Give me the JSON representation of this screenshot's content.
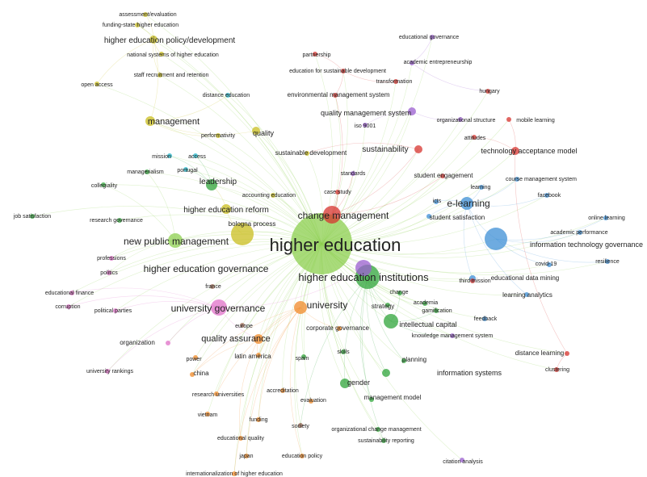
{
  "network": {
    "clusters": {
      "red": "#d7342f",
      "green": "#2fa43a",
      "blue": "#3d8fd6",
      "yellow": "#c9bd1f",
      "purple": "#9b5fd0",
      "cyan": "#22b5c9",
      "orange": "#f08a28",
      "pink": "#e070c8",
      "brown": "#9e6b55",
      "lightgreen": "#8ccf4f"
    },
    "terms": [
      {
        "label": "higher education",
        "cluster": "lightgreen",
        "weight": 10
      },
      {
        "label": "higher education institutions",
        "cluster": "green",
        "weight": 7
      },
      {
        "label": "change management",
        "cluster": "red",
        "weight": 6
      },
      {
        "label": "new public management",
        "cluster": "lightgreen",
        "weight": 6
      },
      {
        "label": "higher education governance",
        "cluster": "purple",
        "weight": 6
      },
      {
        "label": "university governance",
        "cluster": "pink",
        "weight": 6
      },
      {
        "label": "university",
        "cluster": "orange",
        "weight": 6
      },
      {
        "label": "e-learning",
        "cluster": "blue",
        "weight": 6
      },
      {
        "label": "quality assurance",
        "cluster": "orange",
        "weight": 5
      },
      {
        "label": "higher education reform",
        "cluster": "yellow",
        "weight": 4
      },
      {
        "label": "management",
        "cluster": "yellow",
        "weight": 5
      },
      {
        "label": "higher education policy/development",
        "cluster": "yellow",
        "weight": 4
      },
      {
        "label": "leadership",
        "cluster": "green",
        "weight": 4
      },
      {
        "label": "sustainability",
        "cluster": "red",
        "weight": 4
      },
      {
        "label": "quality management system",
        "cluster": "purple",
        "weight": 4
      },
      {
        "label": "technology acceptance model",
        "cluster": "red",
        "weight": 3
      },
      {
        "label": "information technology governance",
        "cluster": "blue",
        "weight": 3
      },
      {
        "label": "intellectual capital",
        "cluster": "green",
        "weight": 3
      },
      {
        "label": "information systems",
        "cluster": "green",
        "weight": 3
      },
      {
        "label": "gender",
        "cluster": "green",
        "weight": 3
      },
      {
        "label": "bologna process",
        "cluster": "yellow",
        "weight": 2
      },
      {
        "label": "quality",
        "cluster": "yellow",
        "weight": 3
      },
      {
        "label": "strategy",
        "cluster": "green",
        "weight": 3
      },
      {
        "label": "educational data mining",
        "cluster": "blue",
        "weight": 2
      },
      {
        "label": "distance learning",
        "cluster": "red",
        "weight": 2
      },
      {
        "label": "latin america",
        "cluster": "orange",
        "weight": 2
      },
      {
        "label": "china",
        "cluster": "orange",
        "weight": 2
      },
      {
        "label": "learning analytics",
        "cluster": "blue",
        "weight": 2
      },
      {
        "label": "management model",
        "cluster": "green",
        "weight": 2
      },
      {
        "label": "student satisfaction",
        "cluster": "blue",
        "weight": 2
      },
      {
        "label": "student engagement",
        "cluster": "red",
        "weight": 2
      },
      {
        "label": "corporate governance",
        "cluster": "orange",
        "weight": 2
      },
      {
        "label": "planning",
        "cluster": "green",
        "weight": 2
      },
      {
        "label": "organization",
        "cluster": "pink",
        "weight": 2
      },
      {
        "label": "research universities",
        "cluster": "orange",
        "weight": 2
      },
      {
        "label": "evaluation",
        "cluster": "orange",
        "weight": 2
      },
      {
        "label": "funding",
        "cluster": "orange",
        "weight": 2
      },
      {
        "label": "sustainable development",
        "cluster": "yellow",
        "weight": 2
      },
      {
        "label": "environmental management system",
        "cluster": "red",
        "weight": 2
      },
      {
        "label": "education for sustainable development",
        "cluster": "red",
        "weight": 2
      },
      {
        "label": "academic entrepreneurship",
        "cluster": "purple",
        "weight": 2
      },
      {
        "label": "educational governance",
        "cluster": "purple",
        "weight": 1
      },
      {
        "label": "assessment/evaluation",
        "cluster": "yellow",
        "weight": 1
      },
      {
        "label": "funding-state higher education",
        "cluster": "yellow",
        "weight": 1
      },
      {
        "label": "national systems of higher education",
        "cluster": "yellow",
        "weight": 1
      },
      {
        "label": "staff recruitment and retention",
        "cluster": "yellow",
        "weight": 1
      },
      {
        "label": "open access",
        "cluster": "yellow",
        "weight": 1
      },
      {
        "label": "partnership",
        "cluster": "red",
        "weight": 1
      },
      {
        "label": "transformation",
        "cluster": "red",
        "weight": 1
      },
      {
        "label": "hungary",
        "cluster": "red",
        "weight": 1
      },
      {
        "label": "distance education",
        "cluster": "cyan",
        "weight": 1
      },
      {
        "label": "iso 9001",
        "cluster": "purple",
        "weight": 1
      },
      {
        "label": "organizational structure",
        "cluster": "purple",
        "weight": 1
      },
      {
        "label": "mobile learning",
        "cluster": "red",
        "weight": 1
      },
      {
        "label": "attitudes",
        "cluster": "red",
        "weight": 1
      },
      {
        "label": "performativity",
        "cluster": "yellow",
        "weight": 1
      },
      {
        "label": "mission",
        "cluster": "cyan",
        "weight": 1
      },
      {
        "label": "access",
        "cluster": "cyan",
        "weight": 1
      },
      {
        "label": "portugal",
        "cluster": "cyan",
        "weight": 1
      },
      {
        "label": "managerialism",
        "cluster": "green",
        "weight": 1
      },
      {
        "label": "collegiality",
        "cluster": "green",
        "weight": 1
      },
      {
        "label": "accounting education",
        "cluster": "yellow",
        "weight": 1
      },
      {
        "label": "standards",
        "cluster": "purple",
        "weight": 1
      },
      {
        "label": "case study",
        "cluster": "red",
        "weight": 1
      },
      {
        "label": "course management system",
        "cluster": "blue",
        "weight": 1
      },
      {
        "label": "learning",
        "cluster": "blue",
        "weight": 1
      },
      {
        "label": "facebook",
        "cluster": "blue",
        "weight": 1
      },
      {
        "label": "icts",
        "cluster": "blue",
        "weight": 1
      },
      {
        "label": "job satisfaction",
        "cluster": "green",
        "weight": 1
      },
      {
        "label": "research governance",
        "cluster": "green",
        "weight": 1
      },
      {
        "label": "online learning",
        "cluster": "blue",
        "weight": 1
      },
      {
        "label": "academic performance",
        "cluster": "blue",
        "weight": 1
      },
      {
        "label": "resilience",
        "cluster": "blue",
        "weight": 1
      },
      {
        "label": "covid-19",
        "cluster": "blue",
        "weight": 1
      },
      {
        "label": "professions",
        "cluster": "pink",
        "weight": 1
      },
      {
        "label": "politics",
        "cluster": "pink",
        "weight": 1
      },
      {
        "label": "france",
        "cluster": "brown",
        "weight": 1
      },
      {
        "label": "third mission",
        "cluster": "red",
        "weight": 1
      },
      {
        "label": "change",
        "cluster": "green",
        "weight": 1
      },
      {
        "label": "academia",
        "cluster": "green",
        "weight": 1
      },
      {
        "label": "gamification",
        "cluster": "green",
        "weight": 1
      },
      {
        "label": "feedback",
        "cluster": "blue",
        "weight": 1
      },
      {
        "label": "knowledge management system",
        "cluster": "purple",
        "weight": 1
      },
      {
        "label": "educational finance",
        "cluster": "pink",
        "weight": 1
      },
      {
        "label": "corruption",
        "cluster": "pink",
        "weight": 1
      },
      {
        "label": "political parties",
        "cluster": "pink",
        "weight": 1
      },
      {
        "label": "europe",
        "cluster": "brown",
        "weight": 1
      },
      {
        "label": "power",
        "cluster": "orange",
        "weight": 1
      },
      {
        "label": "spain",
        "cluster": "green",
        "weight": 1
      },
      {
        "label": "skills",
        "cluster": "green",
        "weight": 1
      },
      {
        "label": "university rankings",
        "cluster": "pink",
        "weight": 1
      },
      {
        "label": "clustering",
        "cluster": "red",
        "weight": 1
      },
      {
        "label": "accreditation",
        "cluster": "orange",
        "weight": 1
      },
      {
        "label": "vietnam",
        "cluster": "orange",
        "weight": 1
      },
      {
        "label": "society",
        "cluster": "brown",
        "weight": 1
      },
      {
        "label": "organizational change management",
        "cluster": "green",
        "weight": 1
      },
      {
        "label": "educational quality",
        "cluster": "orange",
        "weight": 1
      },
      {
        "label": "sustainability reporting",
        "cluster": "green",
        "weight": 1
      },
      {
        "label": "japan",
        "cluster": "orange",
        "weight": 1
      },
      {
        "label": "education policy",
        "cluster": "orange",
        "weight": 1
      },
      {
        "label": "citation analysis",
        "cluster": "purple",
        "weight": 1
      },
      {
        "label": "internationalization of higher education",
        "cluster": "orange",
        "weight": 1
      }
    ]
  }
}
